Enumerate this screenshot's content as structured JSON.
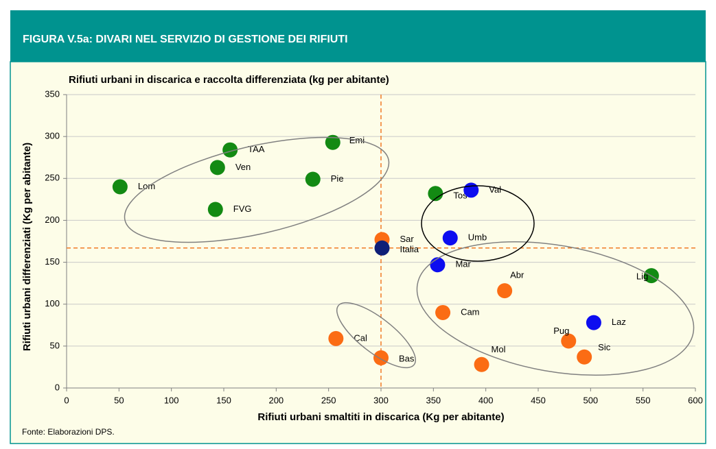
{
  "header": {
    "title": "FIGURA V.5a: DIVARI NEL SERVIZIO DI GESTIONE DEI RIFIUTI"
  },
  "chart_data": {
    "type": "scatter",
    "title": "Rifiuti urbani in discarica e raccolta differenziata (kg per abitante)",
    "x_label": "Rifiuti urbani smaltiti in discarica (Kg per abitante)",
    "y_label": "Rifiuti urbani differenziati (Kg per abitante)",
    "labels": [
      "Lom",
      "FVG",
      "Ven",
      "TAA",
      "Pie",
      "Emi",
      "Tos",
      "Val",
      "Umb",
      "Mar",
      "Sar",
      "Italia",
      "Lig",
      "Abr",
      "Cam",
      "Laz",
      "Pug",
      "Sic",
      "Mol",
      "Cal",
      "Bas"
    ],
    "x": [
      51,
      142,
      144,
      156,
      235,
      254,
      352,
      386,
      366,
      354,
      301,
      301,
      558,
      418,
      359,
      503,
      479,
      494,
      396,
      257,
      300
    ],
    "y": [
      240,
      213,
      263,
      284,
      249,
      293,
      232,
      236,
      179,
      147,
      177,
      167,
      134,
      116,
      90,
      78,
      56,
      37,
      28,
      59,
      36
    ],
    "colors": [
      "#138a13",
      "#138a13",
      "#138a13",
      "#138a13",
      "#138a13",
      "#138a13",
      "#138a13",
      "#0d0df0",
      "#0d0df0",
      "#0d0df0",
      "#fb6c14",
      "#0f1f78",
      "#138a13",
      "#fb6c14",
      "#fb6c14",
      "#0d0df0",
      "#fb6c14",
      "#fb6c14",
      "#fb6c14",
      "#fb6c14",
      "#fb6c14"
    ],
    "reference_lines": {
      "x": 300,
      "y": 167,
      "color": "#f07a24"
    },
    "xlim": [
      0,
      600
    ],
    "xticks": [
      0,
      50,
      100,
      150,
      200,
      250,
      300,
      350,
      400,
      450,
      500,
      550,
      600
    ],
    "ylim": [
      0,
      350
    ],
    "yticks": [
      0,
      50,
      100,
      150,
      200,
      250,
      300,
      350
    ],
    "grid": true
  },
  "footer": {
    "source": "Fonte: Elaborazioni DPS."
  }
}
